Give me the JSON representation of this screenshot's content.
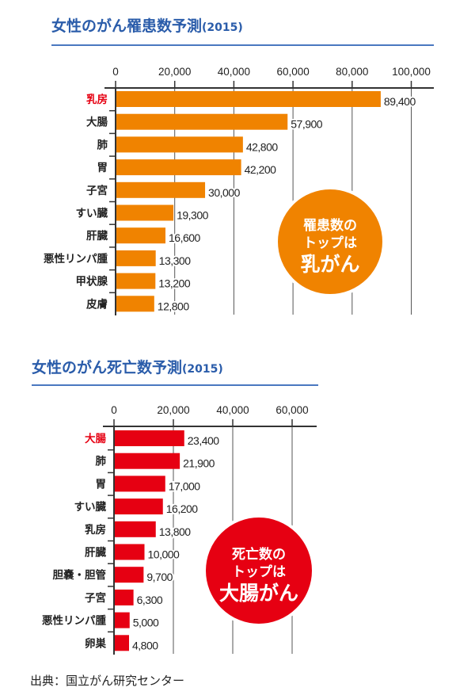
{
  "chart_data": [
    {
      "type": "bar",
      "orientation": "horizontal",
      "title": "女性のがん罹患数予測",
      "title_year": "(2015)",
      "categories": [
        "乳房",
        "大腸",
        "肺",
        "胃",
        "子宮",
        "すい臓",
        "肝臓",
        "悪性リンパ腫",
        "甲状腺",
        "皮膚"
      ],
      "values": [
        89400,
        57900,
        42800,
        42200,
        30000,
        19300,
        16600,
        13300,
        13200,
        12800
      ],
      "value_labels": [
        "89,400",
        "57,900",
        "42,800",
        "42,200",
        "30,000",
        "19,300",
        "16,600",
        "13,300",
        "13,200",
        "12,800"
      ],
      "ticks": [
        0,
        20000,
        40000,
        60000,
        80000,
        100000
      ],
      "tick_labels": [
        "0",
        "20,000",
        "40,000",
        "60,000",
        "80,000",
        "100,000"
      ],
      "xlim": [
        0,
        108000
      ],
      "highlight_index": 0,
      "bar_color": "#f08300",
      "highlight_label_color": "#e60012",
      "grid": true,
      "callout": {
        "lines": [
          "罹患数の",
          "トップは",
          "乳がん"
        ],
        "color": "#f08300"
      }
    },
    {
      "type": "bar",
      "orientation": "horizontal",
      "title": "女性のがん死亡数予測",
      "title_year": "(2015)",
      "categories": [
        "大腸",
        "肺",
        "胃",
        "すい臓",
        "乳房",
        "肝臓",
        "胆嚢・胆管",
        "子宮",
        "悪性リンパ腫",
        "卵巣"
      ],
      "values": [
        23400,
        21900,
        17000,
        16200,
        13800,
        10000,
        9700,
        6300,
        5000,
        4800
      ],
      "value_labels": [
        "23,400",
        "21,900",
        "17,000",
        "16,200",
        "13,800",
        "10,000",
        "9,700",
        "6,300",
        "5,000",
        "4,800"
      ],
      "ticks": [
        0,
        20000,
        40000,
        60000
      ],
      "tick_labels": [
        "0",
        "20,000",
        "40,000",
        "60,000"
      ],
      "xlim": [
        0,
        68000
      ],
      "highlight_index": 0,
      "bar_color": "#e60012",
      "highlight_label_color": "#e60012",
      "grid": true,
      "callout": {
        "lines": [
          "死亡数の",
          "トップは",
          "大腸がん"
        ],
        "color": "#e60012"
      }
    }
  ],
  "source": "出典：国立がん研究センター"
}
